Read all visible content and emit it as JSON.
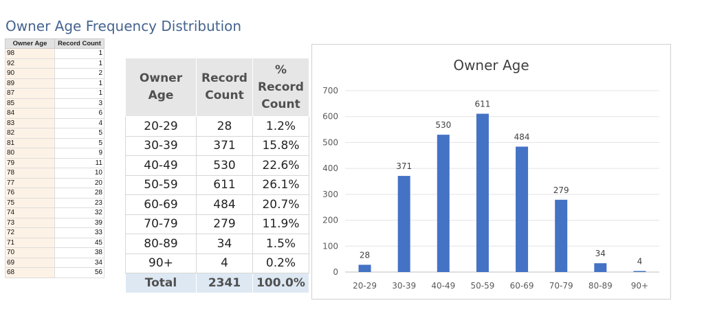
{
  "page_title": "Owner Age Frequency Distribution",
  "raw_table": {
    "headers": [
      "Owner Age",
      "Record Count"
    ],
    "rows": [
      [
        "98",
        "1"
      ],
      [
        "92",
        "1"
      ],
      [
        "90",
        "2"
      ],
      [
        "89",
        "1"
      ],
      [
        "87",
        "1"
      ],
      [
        "85",
        "3"
      ],
      [
        "84",
        "6"
      ],
      [
        "83",
        "4"
      ],
      [
        "82",
        "5"
      ],
      [
        "81",
        "5"
      ],
      [
        "80",
        "9"
      ],
      [
        "79",
        "11"
      ],
      [
        "78",
        "10"
      ],
      [
        "77",
        "20"
      ],
      [
        "76",
        "28"
      ],
      [
        "75",
        "23"
      ],
      [
        "74",
        "32"
      ],
      [
        "73",
        "39"
      ],
      [
        "72",
        "33"
      ],
      [
        "71",
        "45"
      ],
      [
        "70",
        "38"
      ],
      [
        "69",
        "34"
      ],
      [
        "68",
        "56"
      ]
    ]
  },
  "summary_table": {
    "headers": [
      "Owner Age",
      "Record Count",
      "% Record Count"
    ],
    "rows": [
      [
        "20-29",
        "28",
        "1.2%"
      ],
      [
        "30-39",
        "371",
        "15.8%"
      ],
      [
        "40-49",
        "530",
        "22.6%"
      ],
      [
        "50-59",
        "611",
        "26.1%"
      ],
      [
        "60-69",
        "484",
        "20.7%"
      ],
      [
        "70-79",
        "279",
        "11.9%"
      ],
      [
        "80-89",
        "34",
        "1.5%"
      ],
      [
        "90+",
        "4",
        "0.2%"
      ]
    ],
    "total": [
      "Total",
      "2341",
      "100.0%"
    ]
  },
  "chart_data": {
    "type": "bar",
    "title": "Owner Age",
    "categories": [
      "20-29",
      "30-39",
      "40-49",
      "50-59",
      "60-69",
      "70-79",
      "80-89",
      "90+"
    ],
    "values": [
      28,
      371,
      530,
      611,
      484,
      279,
      34,
      4
    ],
    "data_labels": [
      "28",
      "371",
      "530",
      "611",
      "484",
      "279",
      "34",
      "4"
    ],
    "xlabel": "",
    "ylabel": "",
    "ylim": [
      0,
      700
    ],
    "yticks": [
      0,
      100,
      200,
      300,
      400,
      500,
      600,
      700
    ],
    "grid": true,
    "legend": "none",
    "bar_color": "#4472c4"
  }
}
